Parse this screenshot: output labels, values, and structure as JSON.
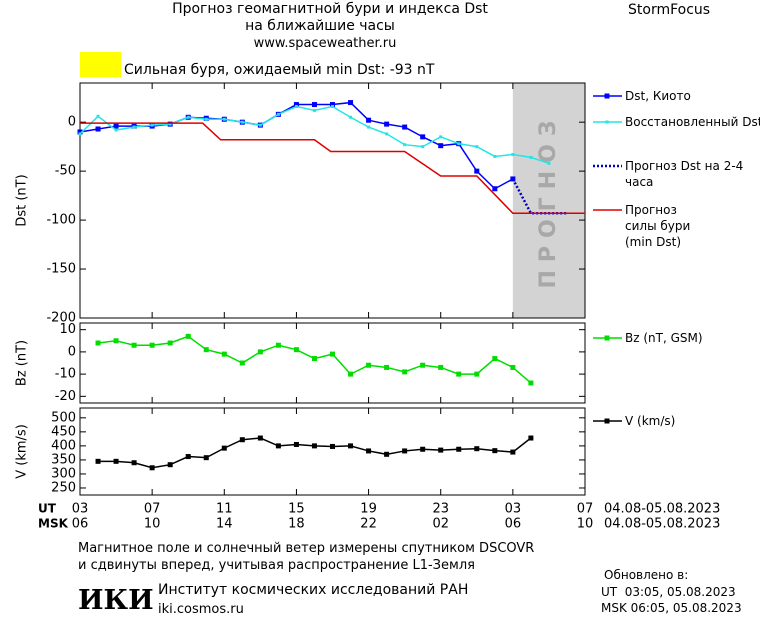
{
  "header": {
    "title": "Прогноз геомагнитной бури и индекса Dst",
    "subtitle": "на ближайшие часы",
    "url": "www.spaceweather.ru",
    "brand": "StormFocus"
  },
  "status": {
    "color": "#ffff00",
    "text": "Сильная буря, ожидаемый min Dst: -93 nT"
  },
  "chart_data": [
    {
      "type": "line",
      "ylabel": "Dst (nT)",
      "xlim": [
        0,
        28
      ],
      "ylim": [
        -200,
        40
      ],
      "yticks": [
        0,
        -50,
        -100,
        -150,
        -200
      ],
      "shaded_region": {
        "x": [
          24,
          28
        ],
        "label": "ПРОГНОЗ",
        "color": "#d3d3d3"
      },
      "series": [
        {
          "name": "Dst, Киото",
          "color": "#0000ff",
          "marker": "square",
          "linestyle": "solid",
          "x": [
            0,
            1,
            2,
            3,
            4,
            5,
            6,
            7,
            8,
            9,
            10,
            11,
            12,
            13,
            14,
            15,
            16,
            17,
            18,
            19,
            20,
            21,
            22,
            23,
            24
          ],
          "values": [
            -10,
            -7,
            -4,
            -4,
            -4,
            -2,
            5,
            4,
            3,
            0,
            -3,
            8,
            18,
            18,
            18,
            20,
            2,
            -2,
            -5,
            -15,
            -24,
            -22,
            -50,
            -68,
            -58
          ]
        },
        {
          "name": "Восстановленный Dst",
          "color": "#22e6e6",
          "marker": "small-square",
          "linestyle": "solid",
          "x": [
            0,
            1,
            2,
            3,
            4,
            5,
            6,
            7,
            8,
            9,
            10,
            11,
            12,
            13,
            14,
            15,
            16,
            17,
            18,
            19,
            20,
            21,
            22,
            23,
            24,
            25,
            26
          ],
          "values": [
            -12,
            6,
            -8,
            -5,
            -3,
            -2,
            5,
            3,
            3,
            0,
            -3,
            8,
            16,
            12,
            16,
            5,
            -5,
            -12,
            -23,
            -25,
            -15,
            -22,
            -25,
            -35,
            -33,
            -36,
            -42
          ]
        },
        {
          "name": "Прогноз Dst на 2-4 часа",
          "color": "#0000cc",
          "marker": "none",
          "linestyle": "dotted",
          "x": [
            24,
            25,
            26,
            27
          ],
          "values": [
            -58,
            -93,
            -93,
            -93
          ]
        },
        {
          "name": "Прогноз силы бури (min Dst)",
          "color": "#dd0000",
          "marker": "none",
          "linestyle": "solid",
          "x": [
            0,
            6.8,
            7.8,
            13,
            13.9,
            18,
            20,
            22,
            24,
            28
          ],
          "values": [
            -1,
            -1,
            -18,
            -18,
            -30,
            -30,
            -55,
            -55,
            -93,
            -93
          ]
        }
      ]
    },
    {
      "type": "line",
      "ylabel": "Bz (nT)",
      "xlim": [
        0,
        28
      ],
      "ylim": [
        -23,
        13
      ],
      "yticks": [
        10,
        0,
        -10,
        -20
      ],
      "series": [
        {
          "name": "Bz (nT, GSM)",
          "color": "#00dd00",
          "marker": "square",
          "linestyle": "solid",
          "x": [
            1,
            2,
            3,
            4,
            5,
            6,
            7,
            8,
            9,
            10,
            11,
            12,
            13,
            14,
            15,
            16,
            17,
            18,
            19,
            20,
            21,
            22,
            23,
            24,
            25
          ],
          "values": [
            4,
            5,
            3,
            3,
            4,
            7,
            1,
            -1,
            -5,
            0,
            3,
            1,
            -3,
            -1,
            -10,
            -6,
            -7,
            -9,
            -6,
            -7,
            -10,
            -10,
            -3,
            -7,
            -14
          ]
        }
      ]
    },
    {
      "type": "line",
      "ylabel": "V (km/s)",
      "xlim": [
        0,
        28
      ],
      "ylim": [
        225,
        535
      ],
      "yticks": [
        500,
        450,
        400,
        350,
        300,
        250
      ],
      "xaxis_title": "UT",
      "xaxis2_title": "MSK",
      "xticks": [
        {
          "value": 0,
          "label": "03"
        },
        {
          "value": 4,
          "label": "07"
        },
        {
          "value": 8,
          "label": "11"
        },
        {
          "value": 12,
          "label": "15"
        },
        {
          "value": 16,
          "label": "19"
        },
        {
          "value": 20,
          "label": "23"
        },
        {
          "value": 24,
          "label": "03"
        },
        {
          "value": 28,
          "label": "07"
        }
      ],
      "xticks2": [
        {
          "value": 0,
          "label": "06"
        },
        {
          "value": 4,
          "label": "10"
        },
        {
          "value": 8,
          "label": "14"
        },
        {
          "value": 12,
          "label": "18"
        },
        {
          "value": 16,
          "label": "22"
        },
        {
          "value": 20,
          "label": "02"
        },
        {
          "value": 24,
          "label": "06"
        },
        {
          "value": 28,
          "label": "10"
        }
      ],
      "date_range": "04.08-05.08.2023",
      "date_range2": "04.08-05.08.2023",
      "series": [
        {
          "name": "V (km/s)",
          "color": "#000000",
          "marker": "square",
          "linestyle": "solid",
          "x": [
            1,
            2,
            3,
            4,
            5,
            6,
            7,
            8,
            9,
            10,
            11,
            12,
            13,
            14,
            15,
            16,
            17,
            18,
            19,
            20,
            21,
            22,
            23,
            24,
            25
          ],
          "values": [
            345,
            345,
            340,
            322,
            333,
            362,
            358,
            392,
            422,
            428,
            400,
            405,
            400,
            398,
            400,
            382,
            370,
            382,
            388,
            385,
            388,
            390,
            383,
            378,
            428
          ]
        }
      ]
    }
  ],
  "footer": {
    "note1": "Магнитное поле и солнечный ветер измерены спутником DSCOVR",
    "note2": "и сдвинуты вперед, учитывая распространение L1-Земля",
    "updated": "Обновлено в:",
    "updated_ut": "UT  03:05, 05.08.2023",
    "updated_msk": "MSK 06:05, 05.08.2023",
    "logo": "ИКИ",
    "institute": "Институт космических исследований РАН",
    "site": "iki.cosmos.ru"
  }
}
